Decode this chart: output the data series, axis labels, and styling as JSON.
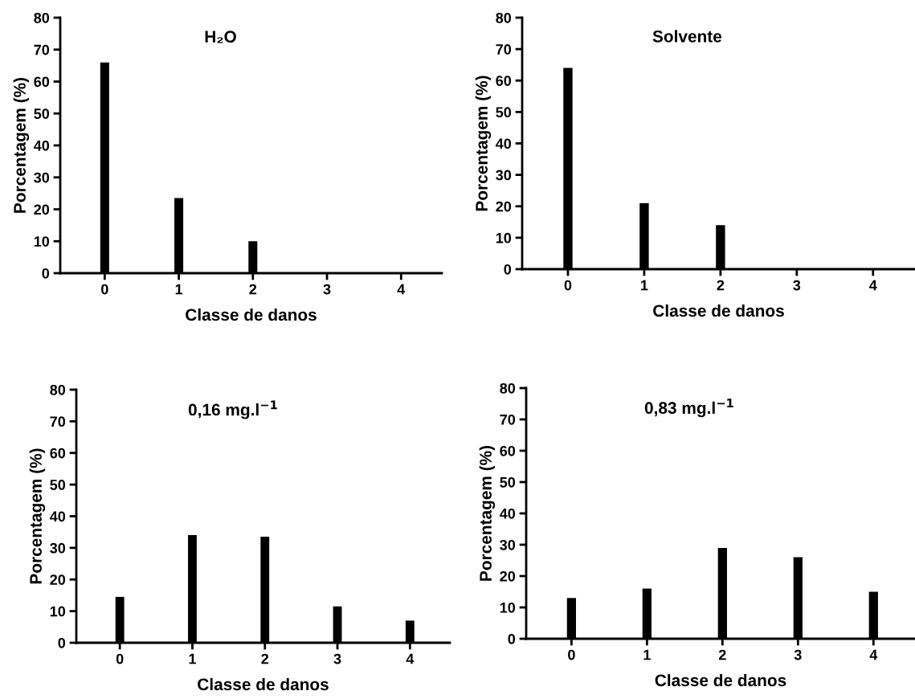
{
  "chart_data": [
    {
      "type": "bar",
      "title": "H₂O",
      "xlabel": "Classe de danos",
      "ylabel": "Porcentagem (%)",
      "categories": [
        "0",
        "1",
        "2",
        "3",
        "4"
      ],
      "values": [
        66,
        23.5,
        10,
        0,
        0
      ],
      "color": "#000000",
      "ylim": [
        0,
        80
      ],
      "yticks": [
        0,
        10,
        20,
        30,
        40,
        50,
        60,
        70,
        80
      ],
      "grid": false,
      "legend": false
    },
    {
      "type": "bar",
      "title": "Solvente",
      "xlabel": "Classe de danos",
      "ylabel": "Porcentagem (%)",
      "categories": [
        "0",
        "1",
        "2",
        "3",
        "4"
      ],
      "values": [
        64,
        21,
        14,
        null,
        0
      ],
      "color": "#000000",
      "ylim": [
        0,
        80
      ],
      "yticks": [
        0,
        10,
        20,
        30,
        40,
        50,
        60,
        70,
        80
      ],
      "grid": false,
      "legend": false
    },
    {
      "type": "bar",
      "title": "0,16 mg.l$^{−1}$",
      "xlabel": "Classe de danos",
      "ylabel": "Porcentagem (%)",
      "categories": [
        "0",
        "1",
        "2",
        "3",
        "4"
      ],
      "values": [
        14.5,
        34,
        33.5,
        11.5,
        7
      ],
      "color": "#000000",
      "ylim": [
        0,
        80
      ],
      "yticks": [
        0,
        10,
        20,
        30,
        40,
        50,
        60,
        70,
        80
      ],
      "grid": false,
      "legend": false
    },
    {
      "type": "bar",
      "title": "0,83 mg.l$^{−1}$",
      "xlabel": "Classe de danos",
      "ylabel": "Porcentagem (%)",
      "categories": [
        "0",
        "1",
        "2",
        "3",
        "4"
      ],
      "values": [
        13,
        16,
        29,
        26,
        15
      ],
      "color": "#000000",
      "ylim": [
        0,
        80
      ],
      "yticks": [
        0,
        10,
        20,
        30,
        40,
        50,
        60,
        70,
        80
      ],
      "grid": false,
      "legend": false
    }
  ]
}
